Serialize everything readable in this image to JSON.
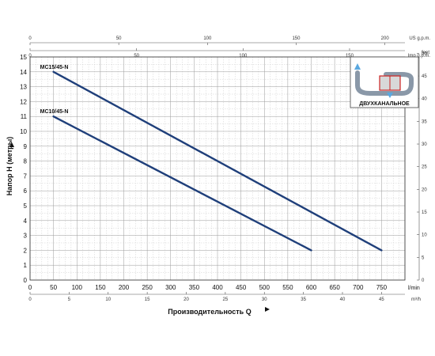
{
  "chart_data": {
    "type": "line",
    "xlabel": "Производительность Q",
    "ylabel": "Напор H (метры)",
    "x_unit": "l/min",
    "xlim": [
      0,
      800
    ],
    "ylim": [
      0,
      15
    ],
    "x_ticks": [
      "0",
      "50",
      "100",
      "150",
      "200",
      "250",
      "300",
      "350",
      "400",
      "450",
      "500",
      "550",
      "600",
      "650",
      "700",
      "750"
    ],
    "y_ticks": [
      "0",
      "1",
      "2",
      "3",
      "4",
      "5",
      "6",
      "7",
      "8",
      "9",
      "10",
      "11",
      "12",
      "13",
      "14",
      "15"
    ],
    "grid": true,
    "series": [
      {
        "name": "MC15/45-N",
        "x": [
          50,
          750
        ],
        "y": [
          14,
          2
        ],
        "color": "#1f3f7a"
      },
      {
        "name": "MC10/45-N",
        "x": [
          50,
          600
        ],
        "y": [
          11,
          2
        ],
        "color": "#1f3f7a"
      }
    ],
    "secondary_axes": {
      "top_usgpm": {
        "label": "US g.p.m.",
        "max": 211.3,
        "ticks": [
          "0",
          "50",
          "100",
          "150",
          "200"
        ]
      },
      "top_impgpm": {
        "label": "Imp g.p.m.",
        "max": 176,
        "ticks": [
          "0",
          "50",
          "100",
          "150"
        ]
      },
      "bottom_m3h": {
        "label": "m³/h",
        "max": 48,
        "ticks": [
          "0",
          "5",
          "10",
          "15",
          "20",
          "25",
          "30",
          "35",
          "40",
          "45"
        ]
      },
      "right_feet": {
        "label": "feet",
        "max": 49.2,
        "ticks": [
          "0",
          "5",
          "10",
          "15",
          "20",
          "25",
          "30",
          "35",
          "40",
          "45",
          "50"
        ]
      }
    },
    "inset": {
      "caption": "ДВУХКАНАЛЬНОЕ"
    }
  }
}
